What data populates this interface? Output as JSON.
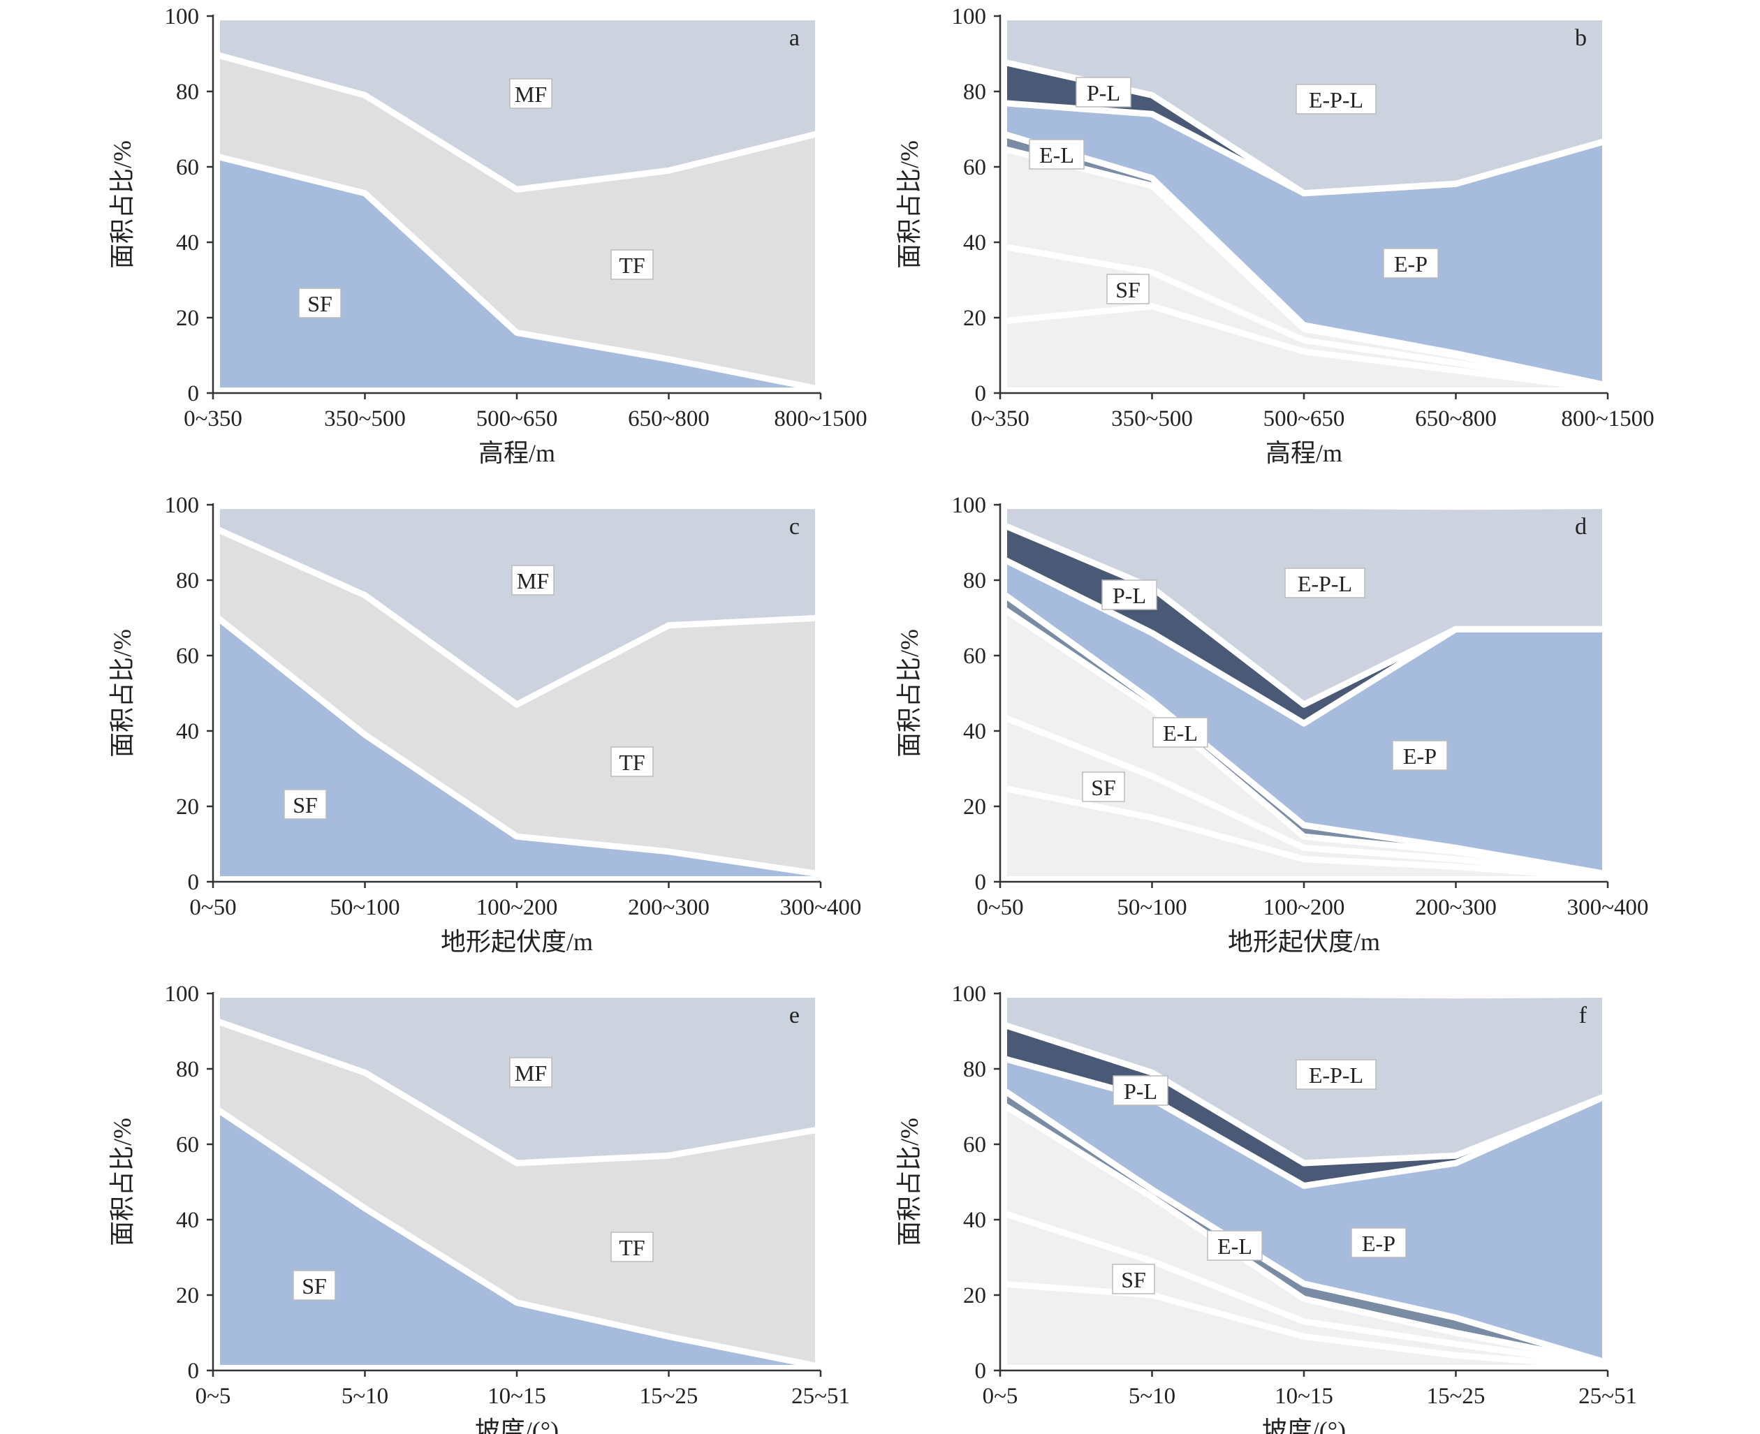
{
  "colors": {
    "SF": "#a7bcdc",
    "TF": "#dfdfdf",
    "MF": "#cdd3de",
    "E-P-L": "#cdd3de",
    "P-L": "#4a5a76",
    "E-P": "#a7bcdc",
    "E-L": "#7a8ba4",
    "light1": "#f0f0f0",
    "light2": "#f0f0f0",
    "light3": "#f0f0f0",
    "axis": "#333333",
    "gap": "#ffffff"
  },
  "chart_data": [
    {
      "panel": "a",
      "type": "area",
      "ylabel": "面积占比/%",
      "xlabel": "高程/m",
      "categories": [
        "0~350",
        "350~500",
        "500~650",
        "650~800",
        "800~1500"
      ],
      "ylim": [
        0,
        100
      ],
      "yticks": [
        "0",
        "20",
        "40",
        "60",
        "80",
        "100"
      ],
      "series": [
        {
          "name": "SF",
          "values": [
            63,
            53,
            16,
            9,
            1
          ]
        },
        {
          "name": "TF",
          "values": [
            27,
            26,
            38,
            50,
            68
          ]
        },
        {
          "name": "MF",
          "values": [
            10,
            21,
            46,
            41,
            31
          ]
        }
      ]
    },
    {
      "panel": "b",
      "type": "area",
      "ylabel": "面积占比/%",
      "xlabel": "高程/m",
      "categories": [
        "0~350",
        "350~500",
        "500~650",
        "650~800",
        "800~1500"
      ],
      "ylim": [
        0,
        100
      ],
      "yticks": [
        "0",
        "20",
        "40",
        "60",
        "80",
        "100"
      ],
      "series": [
        {
          "name": "",
          "values": [
            19,
            23,
            11,
            6,
            1
          ]
        },
        {
          "name": "",
          "values": [
            20,
            9,
            3,
            2,
            0.5
          ]
        },
        {
          "name": "SF",
          "values": [
            26,
            23,
            3,
            2,
            0.5
          ]
        },
        {
          "name": "E-L",
          "values": [
            4,
            2,
            1,
            0.5,
            0
          ]
        },
        {
          "name": "E-P",
          "values": [
            8,
            17,
            35,
            45,
            65
          ]
        },
        {
          "name": "P-L",
          "values": [
            11,
            5,
            0,
            0,
            0
          ]
        },
        {
          "name": "E-P-L",
          "values": [
            12,
            21,
            47,
            44.5,
            33
          ]
        }
      ]
    },
    {
      "panel": "c",
      "type": "area",
      "ylabel": "面积占比/%",
      "xlabel": "地形起伏度/m",
      "categories": [
        "0~50",
        "50~100",
        "100~200",
        "200~300",
        "300~400"
      ],
      "ylim": [
        0,
        100
      ],
      "yticks": [
        "0",
        "20",
        "40",
        "60",
        "80",
        "100"
      ],
      "series": [
        {
          "name": "SF",
          "values": [
            71,
            39,
            12,
            8,
            2
          ]
        },
        {
          "name": "TF",
          "values": [
            23,
            37,
            35,
            60,
            68
          ]
        },
        {
          "name": "MF",
          "values": [
            6,
            24,
            53,
            32,
            30
          ]
        }
      ]
    },
    {
      "panel": "d",
      "type": "area",
      "ylabel": "面积占比/%",
      "xlabel": "地形起伏度/m",
      "categories": [
        "0~50",
        "50~100",
        "100~200",
        "200~300",
        "300~400"
      ],
      "ylim": [
        0,
        100
      ],
      "yticks": [
        "0",
        "20",
        "40",
        "60",
        "80",
        "100"
      ],
      "series": [
        {
          "name": "",
          "values": [
            25,
            17,
            6,
            4,
            1
          ]
        },
        {
          "name": "",
          "values": [
            19,
            11,
            3,
            2,
            0.5
          ]
        },
        {
          "name": "SF",
          "values": [
            29,
            18,
            3,
            2,
            0.5
          ]
        },
        {
          "name": "E-L",
          "values": [
            4,
            2,
            3,
            1,
            0
          ]
        },
        {
          "name": "E-P",
          "values": [
            9,
            18,
            27,
            58,
            65
          ]
        },
        {
          "name": "P-L",
          "values": [
            9,
            12,
            5,
            0,
            0
          ]
        },
        {
          "name": "E-P-L",
          "values": [
            5,
            22,
            53,
            32.5,
            33
          ]
        }
      ]
    },
    {
      "panel": "e",
      "type": "area",
      "ylabel": "面积占比/%",
      "xlabel": "坡度/(°)",
      "categories": [
        "0~5",
        "5~10",
        "10~15",
        "15~25",
        "25~51"
      ],
      "ylim": [
        0,
        100
      ],
      "yticks": [
        "0",
        "20",
        "40",
        "60",
        "80",
        "100"
      ],
      "series": [
        {
          "name": "SF",
          "values": [
            70,
            43,
            18,
            9,
            1
          ]
        },
        {
          "name": "TF",
          "values": [
            23,
            36,
            37,
            48,
            63
          ]
        },
        {
          "name": "MF",
          "values": [
            7,
            21,
            45,
            43,
            36
          ]
        }
      ]
    },
    {
      "panel": "f",
      "type": "area",
      "ylabel": "面积占比/%",
      "xlabel": "坡度/(°)",
      "categories": [
        "0~5",
        "5~10",
        "10~15",
        "15~25",
        "25~51"
      ],
      "ylim": [
        0,
        100
      ],
      "yticks": [
        "0",
        "20",
        "40",
        "60",
        "80",
        "100"
      ],
      "series": [
        {
          "name": "",
          "values": [
            23,
            20,
            9,
            4,
            1
          ]
        },
        {
          "name": "",
          "values": [
            19,
            9,
            4,
            3,
            0.5
          ]
        },
        {
          "name": "SF",
          "values": [
            29,
            17,
            6,
            3,
            0.5
          ]
        },
        {
          "name": "E-L",
          "values": [
            4,
            2,
            4,
            4,
            0
          ]
        },
        {
          "name": "E-P",
          "values": [
            8,
            24,
            26,
            41,
            71
          ]
        },
        {
          "name": "P-L",
          "values": [
            9,
            7,
            6,
            2,
            0
          ]
        },
        {
          "name": "E-P-L",
          "values": [
            8,
            21,
            45,
            42.5,
            27
          ]
        }
      ]
    }
  ]
}
